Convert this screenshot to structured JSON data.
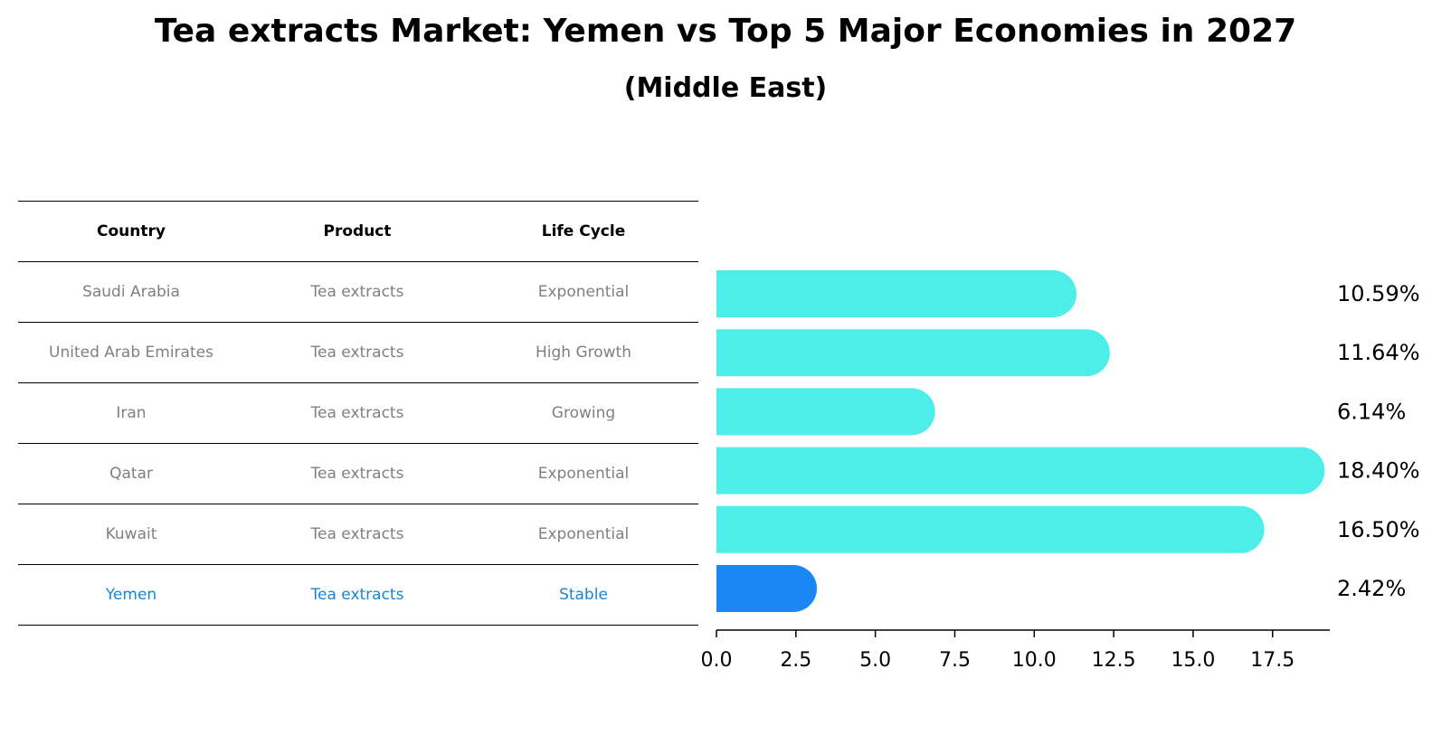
{
  "title": "Tea extracts Market: Yemen vs Top 5 Major Economies in 2027",
  "subtitle": "(Middle East)",
  "colors": {
    "bar": "#4deeea",
    "highlight": "#1b87f5",
    "highlight_text": "#1a86d0",
    "muted_text": "#808080"
  },
  "table": {
    "headers": [
      "Country",
      "Product",
      "Life Cycle"
    ],
    "rows": [
      [
        "Saudi Arabia",
        "Tea extracts",
        "Exponential"
      ],
      [
        "United Arab Emirates",
        "Tea extracts",
        "High Growth"
      ],
      [
        "Iran",
        "Tea extracts",
        "Growing"
      ],
      [
        "Qatar",
        "Tea extracts",
        "Exponential"
      ],
      [
        "Kuwait",
        "Tea extracts",
        "Exponential"
      ],
      [
        "Yemen",
        "Tea extracts",
        "Stable"
      ]
    ],
    "highlight_row": 5
  },
  "chart_data": {
    "type": "bar",
    "orientation": "horizontal",
    "categories": [
      "Saudi Arabia",
      "United Arab Emirates",
      "Iran",
      "Qatar",
      "Kuwait",
      "Yemen"
    ],
    "values": [
      10.59,
      11.64,
      6.14,
      18.4,
      16.5,
      2.42
    ],
    "value_labels": [
      "10.59%",
      "11.64%",
      "6.14%",
      "18.40%",
      "16.50%",
      "2.42%"
    ],
    "highlight_index": 5,
    "xlim": [
      0,
      19.3
    ],
    "xticks": [
      0,
      2.5,
      5,
      7.5,
      10,
      12.5,
      15,
      17.5
    ],
    "xtick_labels": [
      "0.0",
      "2.5",
      "5.0",
      "7.5",
      "10.0",
      "12.5",
      "15.0",
      "17.5"
    ],
    "grid": false
  }
}
